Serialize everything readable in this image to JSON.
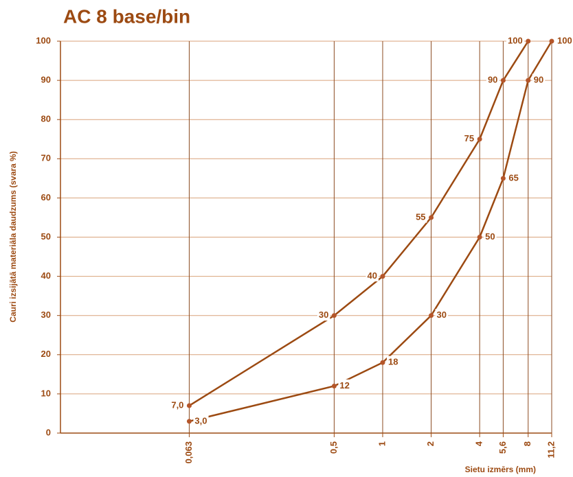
{
  "chart_data": {
    "type": "line",
    "title": "AC 8 base/bin",
    "y_label": "Cauri izsijātā materiāla daudzums (svara %)",
    "x_label": "Sietu izmērs (mm)",
    "xscale": "log",
    "xlim": [
      0.01,
      11.2
    ],
    "xticks": [
      {
        "value": 0.063,
        "label": "0,063"
      },
      {
        "value": 0.5,
        "label": "0,5"
      },
      1,
      2,
      4,
      {
        "value": 5.6,
        "label": "5,6"
      },
      8,
      {
        "value": 11.2,
        "label": "11,2"
      }
    ],
    "ylim": [
      0,
      100
    ],
    "yticks": [
      0,
      10,
      20,
      30,
      40,
      50,
      60,
      70,
      80,
      90,
      100
    ],
    "grid": true,
    "color": "#9c4a12",
    "series": [
      {
        "color": "#9c4a12",
        "x": [
          0.063,
          0.5,
          1,
          2,
          4,
          5.6,
          8
        ],
        "values": [
          7.0,
          30,
          40,
          55,
          75,
          90,
          100
        ],
        "value_labels": [
          "7,0",
          "30",
          "40",
          "55",
          "75",
          "90",
          "100"
        ]
      },
      {
        "color": "#9c4a12",
        "x": [
          0.063,
          0.5,
          1,
          2,
          4,
          5.6,
          8,
          11.2
        ],
        "values": [
          3.0,
          12,
          18,
          30,
          50,
          65,
          90,
          100
        ],
        "value_labels": [
          "3,0",
          "12",
          "18",
          "30",
          "50",
          "65",
          "90",
          "100"
        ]
      }
    ]
  }
}
